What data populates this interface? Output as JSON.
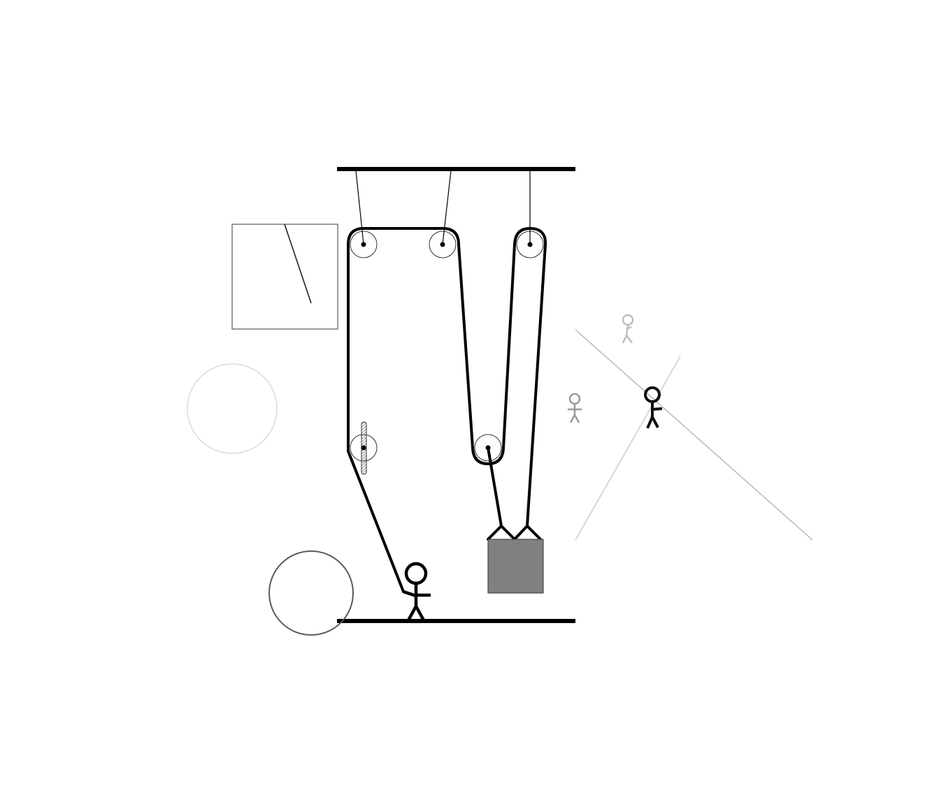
{
  "diagram": {
    "description_texts": [],
    "colors": {
      "rope": "#000000",
      "weight_fill": "#808080",
      "box_border": "#808080",
      "circle_light": "#c8c8c8",
      "circle_dark": "#5a5a5a",
      "figure_gray": "#9a9a9a",
      "figure_light": "#bdbdbd",
      "incline_line": "#bdbdbd",
      "incline_line_light": "#d0d0d0"
    },
    "elements": {
      "ceiling": "ceiling-beam",
      "floor": "floor-beam",
      "pulleys": [
        "fixed-pulley-left",
        "fixed-pulley-middle",
        "fixed-pulley-right",
        "movable-pulley",
        "brake-pulley"
      ],
      "figures": [
        "stick-figure-pulling",
        "stick-figure-gray",
        "stick-figure-light",
        "stick-figure-on-incline"
      ],
      "shapes": [
        "inset-box",
        "light-circle",
        "dark-circle",
        "hanging-weight"
      ]
    }
  }
}
